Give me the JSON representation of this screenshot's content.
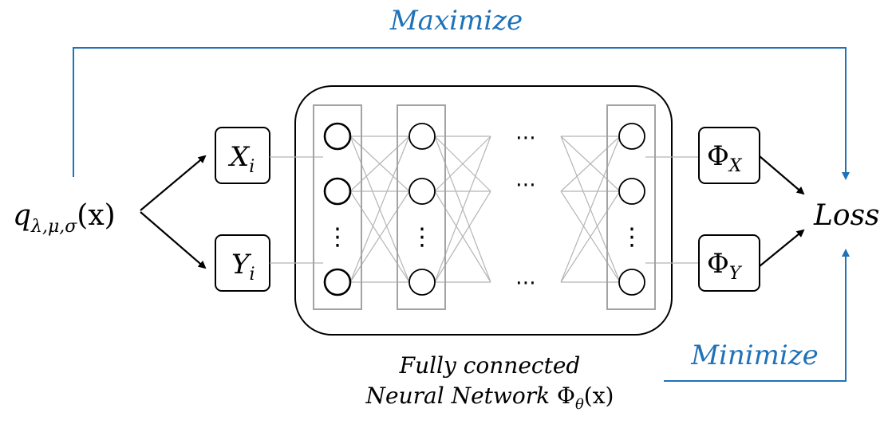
{
  "colors": {
    "accent": "#1f72b8",
    "stroke": "#000000",
    "edge": "#b5b5b5",
    "layer_box": "#a3a3a3"
  },
  "labels": {
    "maximize": "Maximize",
    "minimize": "Minimize",
    "loss": "Loss",
    "caption_line1": "Fully connected",
    "caption_line2_text": "Neural Network ",
    "caption_line2_phi": "Φ",
    "caption_line2_sub": "θ",
    "caption_line2_arg": "(x)"
  },
  "source": {
    "base": "q",
    "sub": "λ,μ,σ",
    "arg": "(x)"
  },
  "inputs": [
    {
      "base": "X",
      "sub": "i"
    },
    {
      "base": "Y",
      "sub": "i"
    }
  ],
  "outputs": [
    {
      "base": "Φ",
      "sub": "X"
    },
    {
      "base": "Φ",
      "sub": "Y"
    }
  ],
  "glyphs": {
    "vdots": "⋮",
    "hdots": "⋯"
  }
}
